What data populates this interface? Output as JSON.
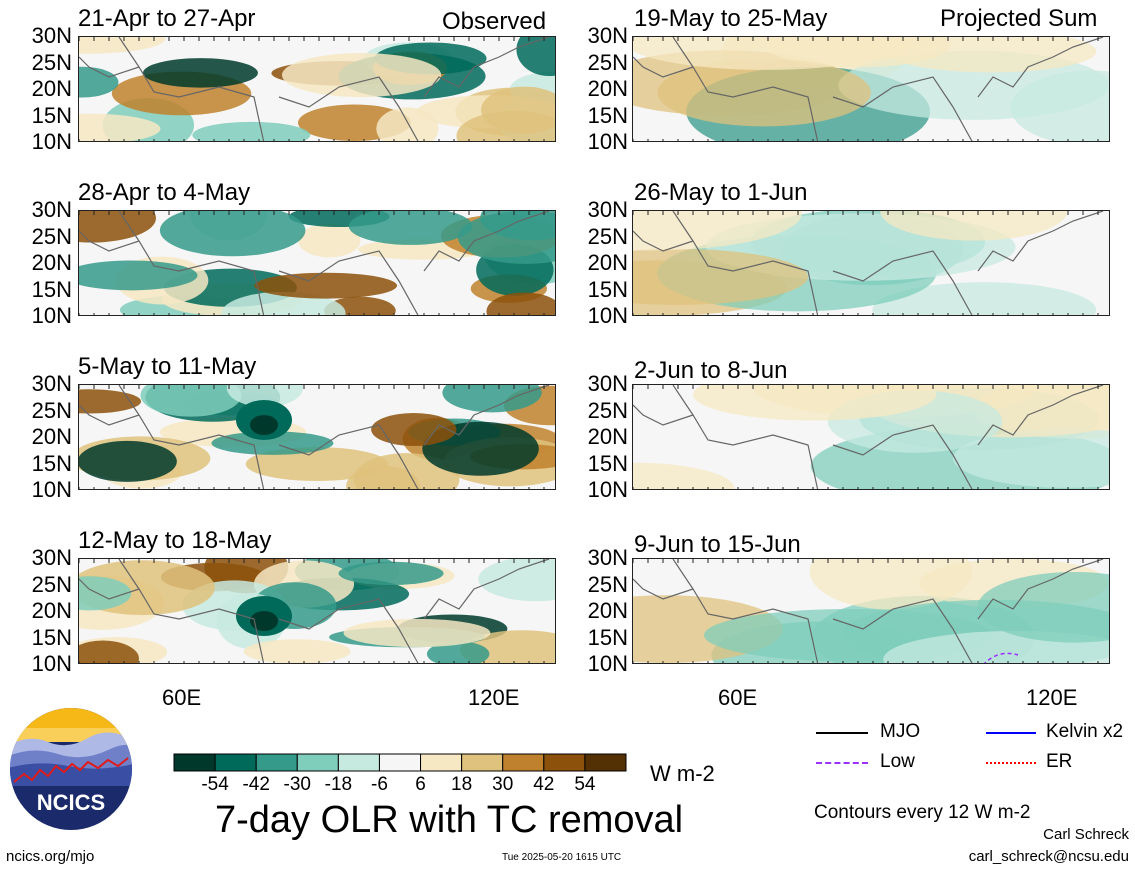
{
  "panels": [
    {
      "title": "21-Apr to 27-Apr",
      "tag": "Observed"
    },
    {
      "title": "19-May to 25-May",
      "tag": "Projected Sum"
    },
    {
      "title": "28-Apr to 4-May",
      "tag": ""
    },
    {
      "title": "26-May to 1-Jun",
      "tag": ""
    },
    {
      "title": "5-May to 11-May",
      "tag": ""
    },
    {
      "title": "2-Jun to 8-Jun",
      "tag": ""
    },
    {
      "title": "12-May to 18-May",
      "tag": ""
    },
    {
      "title": "9-Jun to 15-Jun",
      "tag": ""
    }
  ],
  "lat_labels": [
    "30N",
    "25N",
    "20N",
    "15N",
    "10N"
  ],
  "lon_labels": [
    "60E",
    "120E"
  ],
  "colorbar": {
    "colors": [
      "#00392b",
      "#006a5a",
      "#359a8a",
      "#7fcdbb",
      "#c7eae0",
      "#f6f6f6",
      "#f6e8c3",
      "#dfc27d",
      "#bf812d",
      "#8c510a",
      "#543005"
    ],
    "labels": [
      "-54",
      "-42",
      "-30",
      "-18",
      "-6",
      "6",
      "18",
      "30",
      "42",
      "54"
    ],
    "units": "W m-2"
  },
  "main_title": "7-day OLR with TC removal",
  "legend": [
    {
      "label": "MJO",
      "color": "#000000"
    },
    {
      "label": "Kelvin x2",
      "color": "#0000ff"
    },
    {
      "label": "Low",
      "color": "#9b30ff"
    },
    {
      "label": "ER",
      "color": "#ff0000"
    }
  ],
  "contour_note": "Contours every 12 W m-2",
  "author": "Carl Schreck",
  "email": "carl_schreck@ncsu.edu",
  "site": "ncics.org/mjo",
  "timestamp": "Tue 2025-05-20 1615 UTC",
  "logo_text": "NCICS"
}
